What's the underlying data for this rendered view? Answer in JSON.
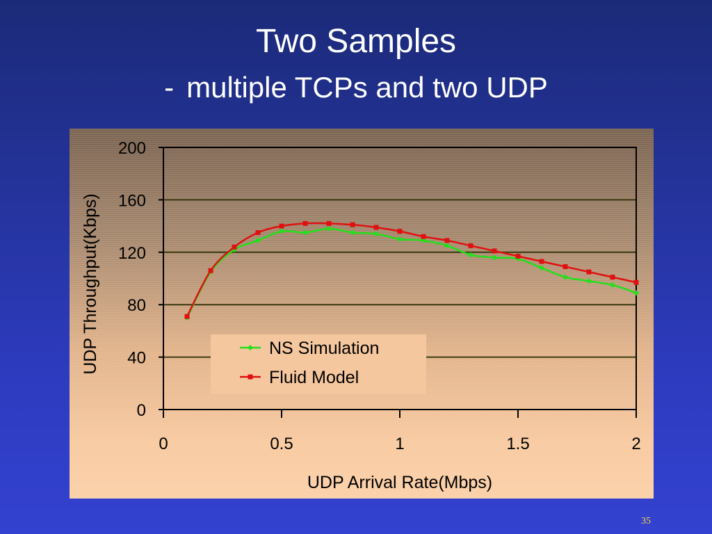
{
  "slide": {
    "title": "Two Samples",
    "subtitle_dash": "-",
    "subtitle": "multiple TCPs and two UDP",
    "page_number": "35"
  },
  "colors": {
    "ns_simulation": "#22e01a",
    "fluid_model": "#e01010",
    "gridline": "#3a3a10"
  },
  "chart_data": {
    "type": "line",
    "title": "",
    "xlabel": "UDP Arrival Rate(Mbps)",
    "ylabel": "UDP Throughput(Kbps)",
    "xlim": [
      0,
      2
    ],
    "ylim": [
      0,
      200
    ],
    "xticks": [
      0,
      0.5,
      1,
      1.5,
      2
    ],
    "xtick_labels": [
      "0",
      "0.5",
      "1",
      "1.5",
      "2"
    ],
    "yticks": [
      0,
      40,
      80,
      120,
      160,
      200
    ],
    "ytick_labels": [
      "0",
      "40",
      "80",
      "120",
      "160",
      "200"
    ],
    "grid": "horizontal",
    "legend_position": "lower-center",
    "x": [
      0.1,
      0.2,
      0.3,
      0.4,
      0.5,
      0.6,
      0.7,
      0.8,
      0.9,
      1.0,
      1.1,
      1.2,
      1.3,
      1.4,
      1.5,
      1.6,
      1.7,
      1.8,
      1.9,
      2.0
    ],
    "series": [
      {
        "name": "NS Simulation",
        "marker": "diamond",
        "values": [
          70,
          105,
          122,
          129,
          136,
          135,
          138,
          135,
          134,
          130,
          129,
          125,
          118,
          116,
          115,
          108,
          101,
          98,
          95,
          89
        ]
      },
      {
        "name": "Fluid Model",
        "marker": "square",
        "values": [
          71,
          106,
          124,
          135,
          140,
          142,
          142,
          141,
          139,
          136,
          132,
          129,
          125,
          121,
          117,
          113,
          109,
          105,
          101,
          97
        ]
      }
    ]
  }
}
